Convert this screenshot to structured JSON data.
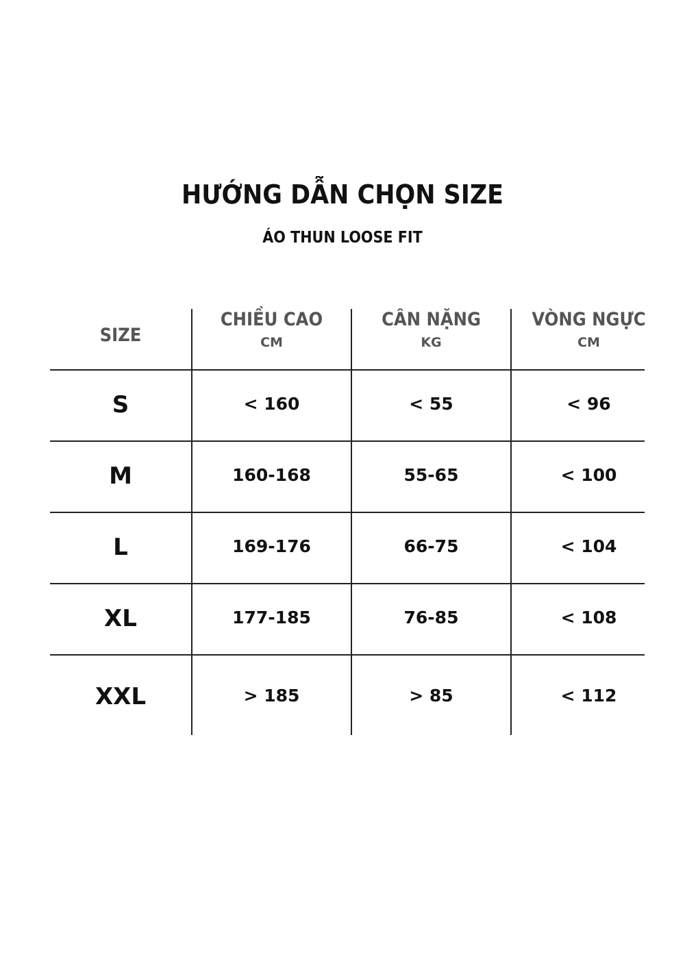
{
  "title": "HƯỚNG DẪN CHỌN SIZE",
  "subtitle": "ÁO THUN LOOSE FIT",
  "table": {
    "headers": [
      {
        "label": "SIZE",
        "unit": ""
      },
      {
        "label": "CHIỀU CAO",
        "unit": "CM"
      },
      {
        "label": "CÂN NẶNG",
        "unit": "KG"
      },
      {
        "label": "VÒNG NGỰC",
        "unit": "CM"
      }
    ],
    "rows": [
      [
        "S",
        "< 160",
        "< 55",
        "< 96"
      ],
      [
        "M",
        "160-168",
        "55-65",
        "< 100"
      ],
      [
        "L",
        "169-176",
        "66-75",
        "< 104"
      ],
      [
        "XL",
        "177-185",
        "76-85",
        "< 108"
      ],
      [
        "XXL",
        "> 185",
        "> 85",
        "< 112"
      ]
    ]
  },
  "colors": {
    "text": "#111111",
    "header_text": "#555555",
    "lines": "#222222"
  }
}
